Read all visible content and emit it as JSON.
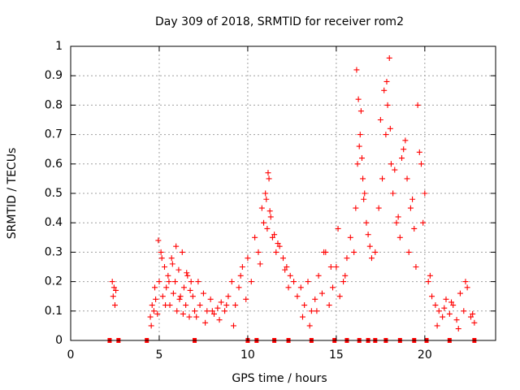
{
  "chart_data": {
    "type": "scatter",
    "title": "Day 309 of 2018, SRMTID for receiver rom2",
    "xlabel": "GPS time / hours",
    "ylabel": "SRMTID / TECUs",
    "xlim": [
      0,
      24
    ],
    "ylim": [
      0,
      1
    ],
    "xticks": [
      0,
      5,
      10,
      15,
      20
    ],
    "yticks": [
      0,
      0.1,
      0.2,
      0.3,
      0.4,
      0.5,
      0.6,
      0.7,
      0.8,
      0.9,
      1
    ],
    "grid": true,
    "marker": "plus",
    "color": "#ff0000",
    "series": [
      {
        "name": "SRMTID",
        "x": [
          2.35,
          2.4,
          2.45,
          2.5,
          2.55,
          4.5,
          4.6,
          4.7,
          4.8,
          4.9,
          5.0,
          5.1,
          5.2,
          5.3,
          5.4,
          5.5,
          5.6,
          5.7,
          5.8,
          5.9,
          6.0,
          6.1,
          6.2,
          6.3,
          6.4,
          6.5,
          6.6,
          6.7,
          6.8,
          6.9,
          7.0,
          4.55,
          4.75,
          4.95,
          5.15,
          5.35,
          5.55,
          5.75,
          5.95,
          6.15,
          6.35,
          6.55,
          6.75,
          7.1,
          7.3,
          7.5,
          7.7,
          7.9,
          8.1,
          8.3,
          8.5,
          8.7,
          8.9,
          9.1,
          9.3,
          9.5,
          9.7,
          9.9,
          7.2,
          7.6,
          8.0,
          8.4,
          8.8,
          9.2,
          9.6,
          10.0,
          10.2,
          10.4,
          10.6,
          10.8,
          11.0,
          11.1,
          11.2,
          11.3,
          11.4,
          11.6,
          11.8,
          12.0,
          12.2,
          12.4,
          12.6,
          10.7,
          10.9,
          11.05,
          11.15,
          11.25,
          11.5,
          11.7,
          12.1,
          12.3,
          12.8,
          13.0,
          13.2,
          13.4,
          13.6,
          13.8,
          14.0,
          14.2,
          14.4,
          14.6,
          14.8,
          15.0,
          15.2,
          15.4,
          15.6,
          15.8,
          13.1,
          13.5,
          13.9,
          14.3,
          14.7,
          15.1,
          15.5,
          16.0,
          16.1,
          16.2,
          16.3,
          16.4,
          16.5,
          16.6,
          16.7,
          16.8,
          16.9,
          17.0,
          16.15,
          16.25,
          16.35,
          16.45,
          16.55,
          17.2,
          17.4,
          17.6,
          17.8,
          17.9,
          18.0,
          18.1,
          18.2,
          18.4,
          18.6,
          18.8,
          19.0,
          19.2,
          19.4,
          19.6,
          19.8,
          20.0,
          17.5,
          17.7,
          17.85,
          18.05,
          18.3,
          18.5,
          18.7,
          18.9,
          19.1,
          19.3,
          19.5,
          19.7,
          19.9,
          20.2,
          20.4,
          20.6,
          20.8,
          21.0,
          21.2,
          21.4,
          21.6,
          21.8,
          22.0,
          22.2,
          22.4,
          22.6,
          22.8,
          20.3,
          20.7,
          21.1,
          21.5,
          21.9,
          22.3,
          22.7
        ],
        "y": [
          0.2,
          0.15,
          0.18,
          0.12,
          0.17,
          0.08,
          0.12,
          0.1,
          0.14,
          0.09,
          0.2,
          0.3,
          0.15,
          0.25,
          0.18,
          0.22,
          0.12,
          0.28,
          0.16,
          0.2,
          0.1,
          0.24,
          0.15,
          0.3,
          0.18,
          0.12,
          0.22,
          0.08,
          0.2,
          0.15,
          0.1,
          0.05,
          0.18,
          0.34,
          0.28,
          0.12,
          0.2,
          0.26,
          0.32,
          0.14,
          0.09,
          0.23,
          0.17,
          0.08,
          0.12,
          0.16,
          0.1,
          0.14,
          0.09,
          0.11,
          0.13,
          0.1,
          0.15,
          0.2,
          0.12,
          0.18,
          0.25,
          0.14,
          0.2,
          0.06,
          0.1,
          0.07,
          0.12,
          0.05,
          0.22,
          0.28,
          0.2,
          0.35,
          0.3,
          0.45,
          0.5,
          0.38,
          0.55,
          0.42,
          0.35,
          0.3,
          0.32,
          0.28,
          0.25,
          0.22,
          0.2,
          0.26,
          0.4,
          0.48,
          0.57,
          0.44,
          0.36,
          0.33,
          0.24,
          0.18,
          0.15,
          0.18,
          0.12,
          0.2,
          0.1,
          0.14,
          0.22,
          0.16,
          0.3,
          0.12,
          0.18,
          0.25,
          0.15,
          0.2,
          0.28,
          0.35,
          0.08,
          0.05,
          0.1,
          0.3,
          0.25,
          0.38,
          0.22,
          0.3,
          0.45,
          0.6,
          0.66,
          0.78,
          0.55,
          0.5,
          0.4,
          0.36,
          0.32,
          0.28,
          0.92,
          0.82,
          0.7,
          0.62,
          0.48,
          0.3,
          0.45,
          0.55,
          0.7,
          0.8,
          0.96,
          0.6,
          0.5,
          0.4,
          0.35,
          0.65,
          0.55,
          0.45,
          0.38,
          0.8,
          0.6,
          0.5,
          0.75,
          0.85,
          0.88,
          0.72,
          0.58,
          0.42,
          0.62,
          0.68,
          0.3,
          0.48,
          0.25,
          0.64,
          0.4,
          0.2,
          0.15,
          0.12,
          0.1,
          0.08,
          0.14,
          0.09,
          0.12,
          0.07,
          0.16,
          0.1,
          0.18,
          0.08,
          0.06,
          0.22,
          0.05,
          0.11,
          0.13,
          0.04,
          0.2,
          0.09
        ]
      }
    ],
    "zero_markers_x": [
      2.2,
      2.7,
      4.3,
      7.0,
      10.0,
      10.5,
      11.5,
      12.3,
      13.6,
      14.9,
      15.6,
      16.3,
      16.8,
      17.2,
      17.8,
      18.6,
      19.4,
      20.1,
      21.4,
      22.8
    ]
  }
}
